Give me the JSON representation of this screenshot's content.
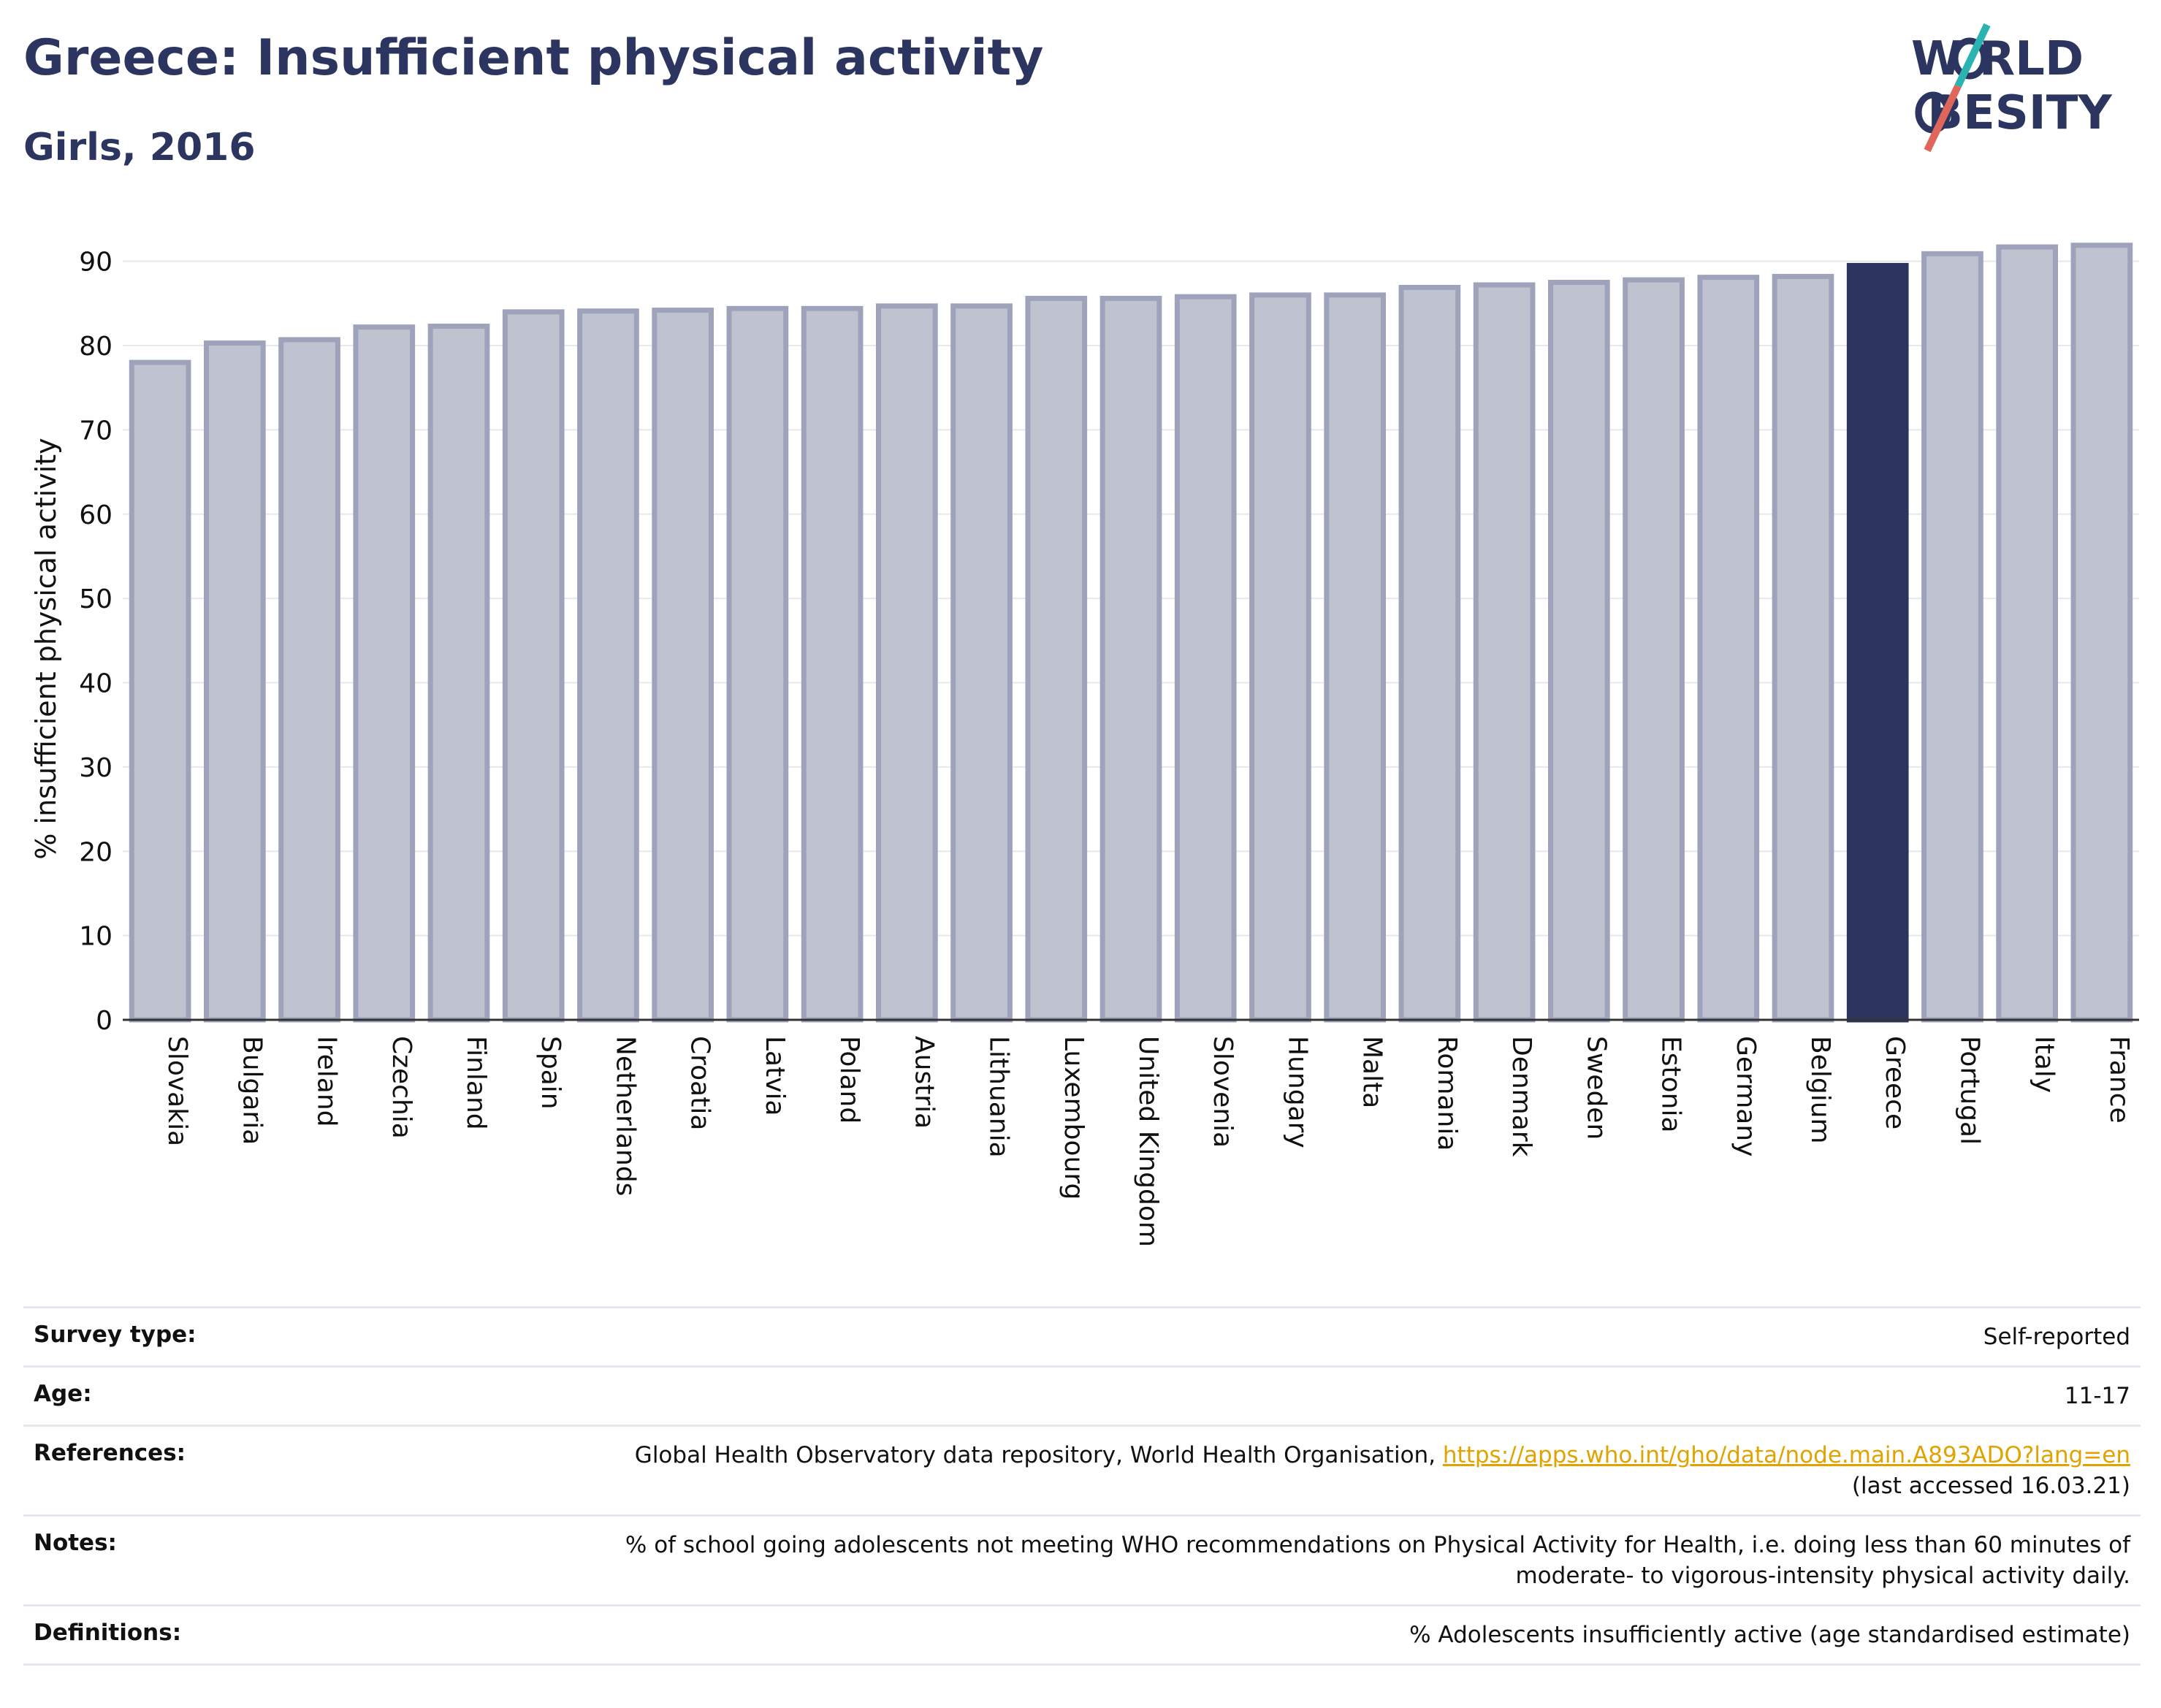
{
  "header": {
    "title": "Greece: Insufficient physical activity",
    "subtitle": "Girls, 2016"
  },
  "logo": {
    "line1": "W RLD",
    "line2": " BESITY",
    "colors": {
      "text": "#2b3560",
      "slash_teal": "#2bb3b1",
      "slash_red": "#e0655a"
    }
  },
  "chart_data": {
    "type": "bar",
    "ylabel": "% insufficient physical activity",
    "xlabel": "",
    "ylim": [
      0,
      95
    ],
    "yticks": [
      0,
      10,
      20,
      30,
      40,
      50,
      60,
      70,
      80,
      90
    ],
    "grid": true,
    "highlight": "Greece",
    "colors": {
      "bar": "#bfc3d0",
      "bar_edge": "#9ea3bb",
      "highlight": "#2b3560"
    },
    "categories": [
      "Slovakia",
      "Bulgaria",
      "Ireland",
      "Czechia",
      "Finland",
      "Spain",
      "Netherlands",
      "Croatia",
      "Latvia",
      "Poland",
      "Austria",
      "Lithuania",
      "Luxembourg",
      "United Kingdom",
      "Slovenia",
      "Hungary",
      "Malta",
      "Romania",
      "Denmark",
      "Sweden",
      "Estonia",
      "Germany",
      "Belgium",
      "Greece",
      "Portugal",
      "Italy",
      "France"
    ],
    "values": [
      78.0,
      80.3,
      80.7,
      82.2,
      82.3,
      84.0,
      84.1,
      84.2,
      84.4,
      84.4,
      84.7,
      84.7,
      85.6,
      85.6,
      85.8,
      86.0,
      86.0,
      86.9,
      87.2,
      87.5,
      87.8,
      88.1,
      88.2,
      89.5,
      90.9,
      91.7,
      91.9
    ]
  },
  "info": {
    "survey_label": "Survey type:",
    "survey_value": "Self-reported",
    "age_label": "Age:",
    "age_value": "11-17",
    "references_label": "References:",
    "references_text": "Global Health Observatory data repository, World Health Organisation, ",
    "references_link": "https://apps.who.int/gho/data/node.main.A893ADO?lang=en",
    "references_accessed": "(last accessed 16.03.21)",
    "notes_label": "Notes:",
    "notes_line1": "% of school going adolescents not meeting WHO recommendations on Physical Activity for Health, i.e. doing less than 60 minutes of",
    "notes_line2": "moderate- to vigorous-intensity physical activity daily.",
    "definitions_label": "Definitions:",
    "definitions_value": "% Adolescents insufficiently active (age standardised estimate)"
  }
}
